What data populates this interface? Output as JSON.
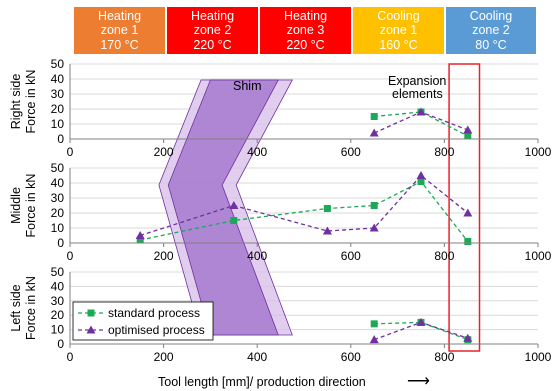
{
  "zones": [
    {
      "line1": "Heating",
      "line2": "zone 1",
      "line3": "170 °C",
      "color": "#ED7D31"
    },
    {
      "line1": "Heating",
      "line2": "zone 2",
      "line3": "220 °C",
      "color": "#FF0000"
    },
    {
      "line1": "Heating",
      "line2": "zone 3",
      "line3": "220 °C",
      "color": "#FF0000"
    },
    {
      "line1": "Cooling",
      "line2": "zone 1",
      "line3": "160 °C",
      "color": "#FFC000"
    },
    {
      "line1": "Cooling",
      "line2": "zone 2",
      "line3": "80 °C",
      "color": "#5B9BD5"
    }
  ],
  "annotations": {
    "shim": "Shim",
    "expansion_line1": "Expansion",
    "expansion_line2": "elements",
    "arrow": "⟶"
  },
  "colors": {
    "standard": "#1AAA55",
    "optimised": "#7030A0",
    "shim_outer": "#D7BDE8",
    "shim_inner": "#A579CF",
    "expansion_box": "#E8222A"
  },
  "chart_data": {
    "type": "line",
    "xlabel": "Tool length [mm]/ production direction",
    "xlim": [
      0,
      1000
    ],
    "x_ticks": [
      0,
      200,
      400,
      600,
      800,
      1000
    ],
    "ylim": [
      0,
      50
    ],
    "y_ticks": [
      0,
      10,
      20,
      30,
      40,
      50
    ],
    "legend": {
      "placement": "bottom-left",
      "entries": [
        "standard process",
        "optimised process"
      ]
    },
    "panels": [
      {
        "ylabel_line1": "Right side",
        "ylabel_line2": "Force in kN",
        "series": [
          {
            "name": "standard process",
            "x": [
              650,
              750,
              850
            ],
            "y": [
              15,
              18,
              2
            ]
          },
          {
            "name": "optimised process",
            "x": [
              650,
              750,
              850
            ],
            "y": [
              4,
              18,
              6
            ]
          }
        ]
      },
      {
        "ylabel_line1": "Middle",
        "ylabel_line2": "Force in kN",
        "series": [
          {
            "name": "standard process",
            "x": [
              150,
              350,
              550,
              650,
              750,
              850
            ],
            "y": [
              2,
              15,
              23,
              25,
              41,
              1
            ]
          },
          {
            "name": "optimised process",
            "x": [
              150,
              350,
              550,
              650,
              750,
              850
            ],
            "y": [
              5,
              25,
              8,
              10,
              45,
              20
            ]
          }
        ]
      },
      {
        "ylabel_line1": "Left side",
        "ylabel_line2": "Force in kN",
        "series": [
          {
            "name": "standard process",
            "x": [
              650,
              750,
              850
            ],
            "y": [
              14,
              15,
              3
            ]
          },
          {
            "name": "optimised process",
            "x": [
              650,
              750,
              850
            ],
            "y": [
              3,
              15,
              4
            ]
          }
        ]
      }
    ]
  }
}
